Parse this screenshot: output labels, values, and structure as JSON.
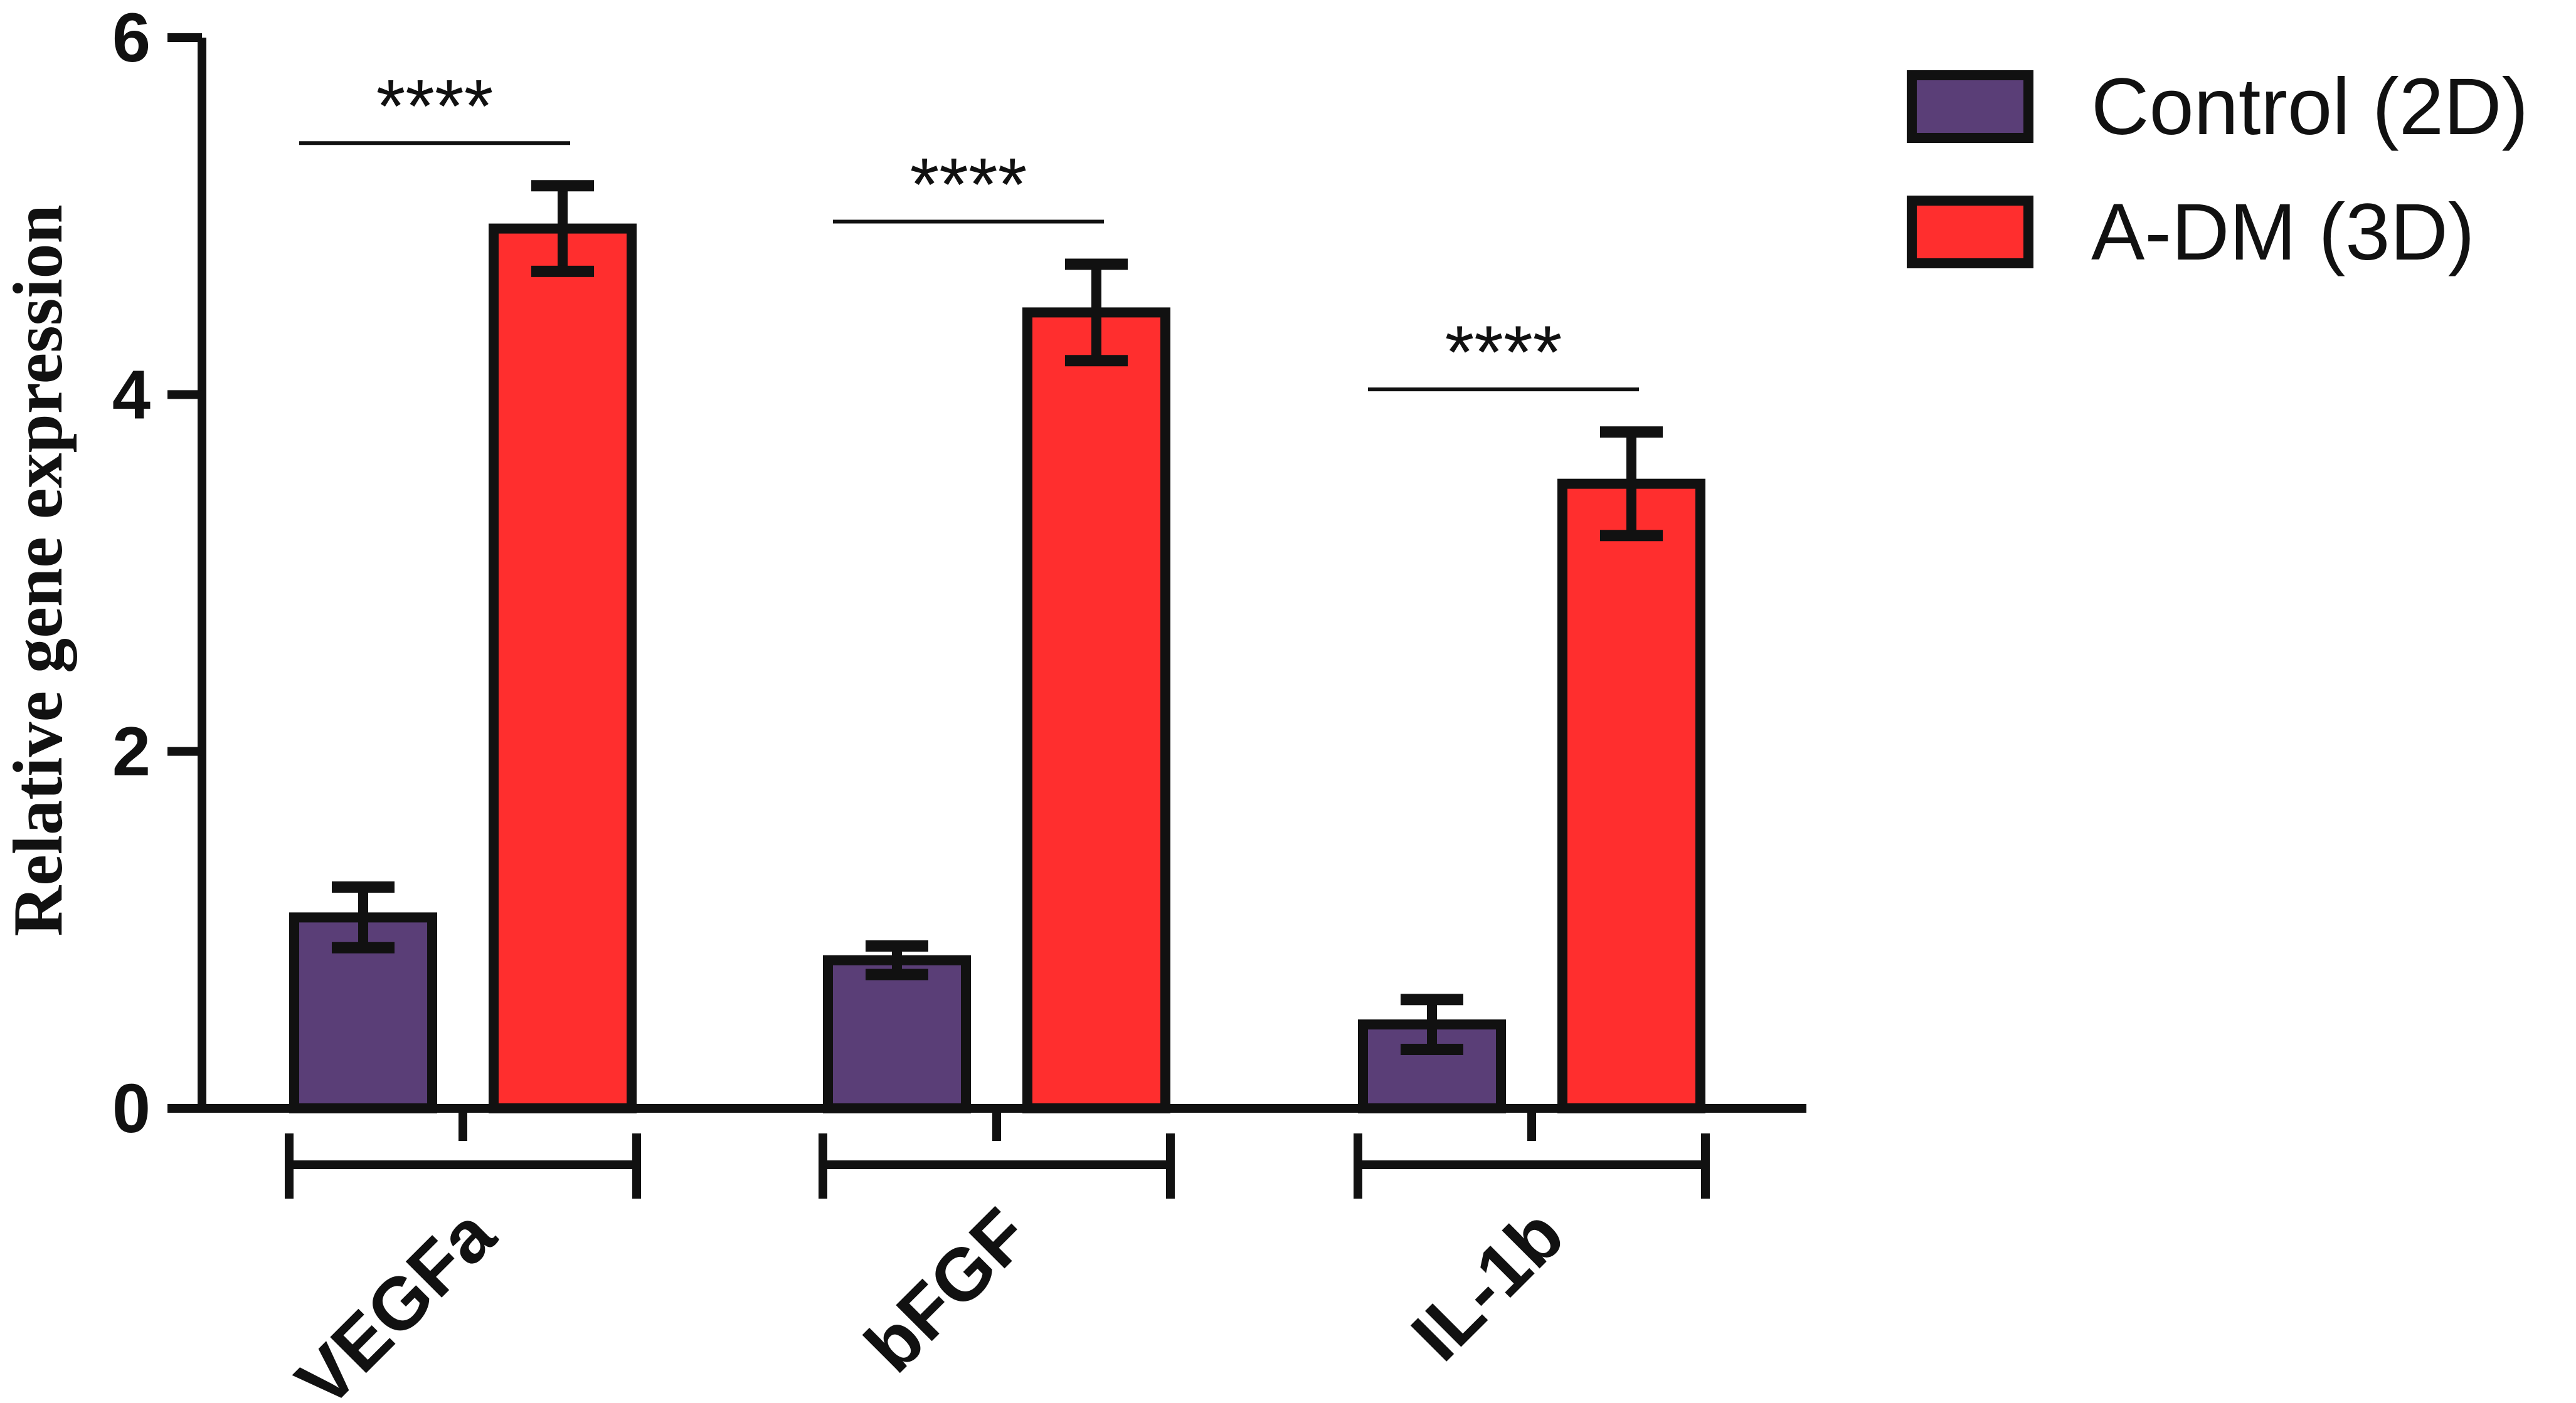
{
  "chart_data": {
    "type": "bar",
    "categories": [
      "VEGFa",
      "bFGF",
      "IL-1b"
    ],
    "series": [
      {
        "name": "Control (2D)",
        "color": "#5A3E77",
        "values": [
          1.07,
          0.83,
          0.47
        ],
        "errors": [
          0.17,
          0.08,
          0.14
        ]
      },
      {
        "name": "A-DM (3D)",
        "color": "#FF2E2E",
        "values": [
          4.93,
          4.46,
          3.5
        ],
        "errors": [
          0.24,
          0.27,
          0.29
        ]
      }
    ],
    "significance": [
      "****",
      "****",
      "****"
    ],
    "title": "",
    "xlabel": "",
    "ylabel": "Relative gene expression",
    "ylim": [
      0,
      6
    ],
    "yticks": [
      0,
      2,
      4,
      6
    ],
    "ytick_labels": [
      "0",
      "2",
      "4",
      "6"
    ],
    "grid": false,
    "legend_position": "top-right"
  }
}
